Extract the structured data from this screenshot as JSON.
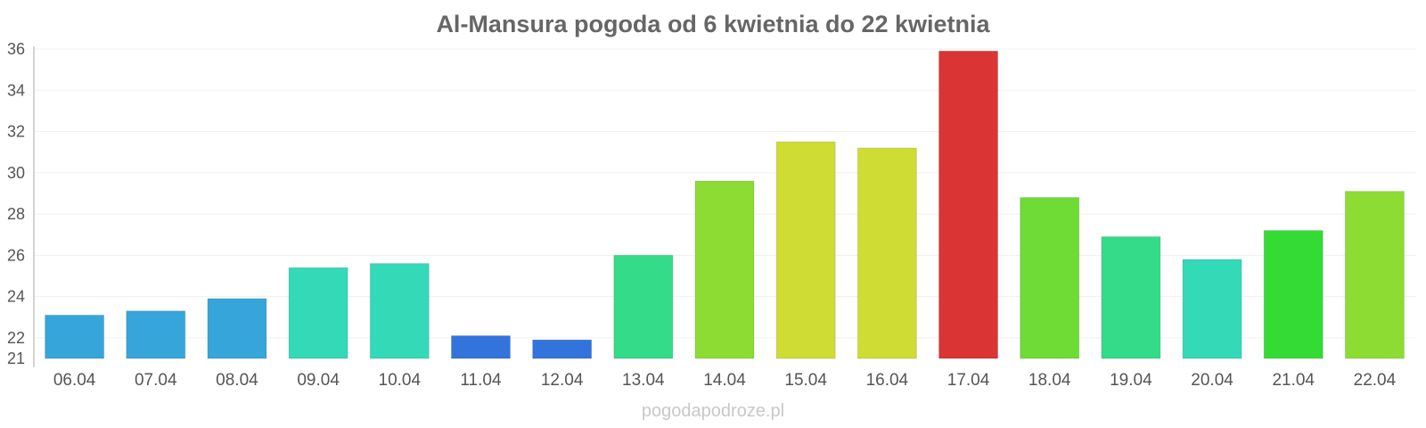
{
  "chart_data": {
    "type": "bar",
    "title": "Al-Mansura pogoda od 6 kwietnia do 22 kwietnia",
    "categories": [
      "06.04",
      "07.04",
      "08.04",
      "09.04",
      "10.04",
      "11.04",
      "12.04",
      "13.04",
      "14.04",
      "15.04",
      "16.04",
      "17.04",
      "18.04",
      "19.04",
      "20.04",
      "21.04",
      "22.04"
    ],
    "values": [
      23.1,
      23.3,
      23.9,
      25.4,
      25.6,
      22.1,
      21.9,
      26.0,
      29.6,
      31.5,
      31.2,
      35.9,
      28.8,
      26.9,
      25.8,
      27.2,
      29.1
    ],
    "colors": [
      "#36a6da",
      "#36a6da",
      "#36a6da",
      "#34d9b8",
      "#34d9b8",
      "#3374dc",
      "#3374dc",
      "#34db88",
      "#8ddc34",
      "#cfdc34",
      "#cfdc34",
      "#db3434",
      "#6edc34",
      "#34db88",
      "#34d9b8",
      "#34db34",
      "#8ddc34"
    ],
    "ylim": [
      21,
      36
    ],
    "yticks": [
      21,
      22,
      24,
      26,
      28,
      30,
      32,
      34,
      36
    ],
    "grid": true,
    "xlabel": "",
    "ylabel": ""
  },
  "footer": {
    "credit": "pogodapodroze.pl"
  }
}
